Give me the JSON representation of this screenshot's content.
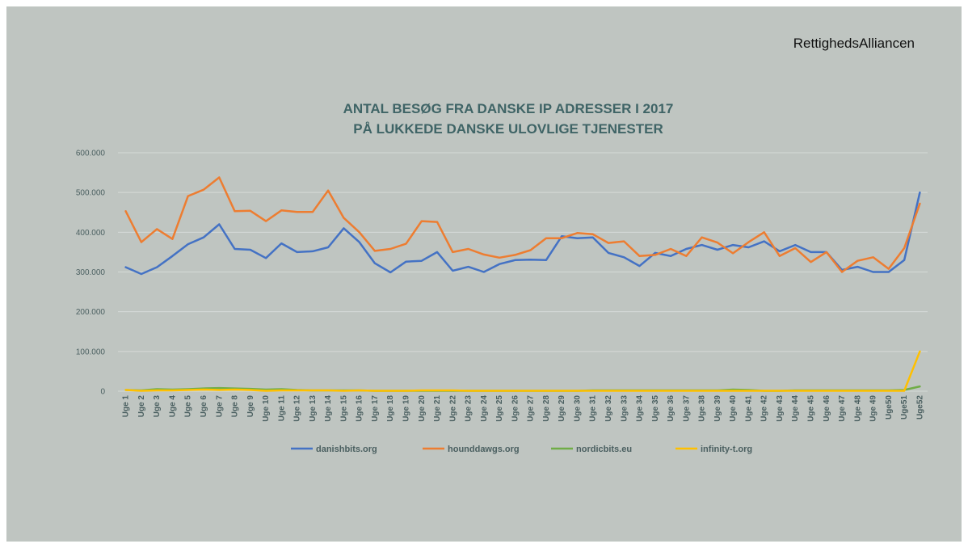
{
  "slide": {
    "org_name": "RettighedsAlliancen"
  },
  "colors": {
    "background": "#bfc5c1",
    "title": "#3f6466",
    "axis_text": "#4a5f60",
    "gridline": "#d6dbd8"
  },
  "chart_data": {
    "type": "line",
    "title_lines": [
      "ANTAL BESØG FRA DANSKE IP ADRESSER I 2017",
      "PÅ LUKKEDE DANSKE ULOVLIGE TJENESTER"
    ],
    "ylim": [
      0,
      600000
    ],
    "yticks": [
      0,
      100000,
      200000,
      300000,
      400000,
      500000,
      600000
    ],
    "ytick_labels": [
      "0",
      "100.000",
      "200.000",
      "300.000",
      "400.000",
      "500.000",
      "600.000"
    ],
    "grid": true,
    "legend_position": "bottom",
    "categories": [
      "Uge 1",
      "Uge 2",
      "Uge 3",
      "Uge 4",
      "Uge 5",
      "Uge 6",
      "Uge 7",
      "Uge 8",
      "Uge 9",
      "Uge 10",
      "Uge 11",
      "Uge 12",
      "Uge 13",
      "Uge 14",
      "Uge 15",
      "Uge 16",
      "Uge 17",
      "Uge 18",
      "Uge 19",
      "Uge 20",
      "Uge 21",
      "Uge 22",
      "Uge 23",
      "Uge 24",
      "Uge 25",
      "Uge 26",
      "Uge 27",
      "Uge 28",
      "Uge 29",
      "Uge 30",
      "Uge 31",
      "Uge 32",
      "Uge 33",
      "Uge 34",
      "Uge 35",
      "Uge 36",
      "Uge 37",
      "Uge 38",
      "Uge 39",
      "Uge 40",
      "Uge 41",
      "Uge 42",
      "Uge 43",
      "Uge 44",
      "Uge 45",
      "Uge 46",
      "Uge 47",
      "Uge 48",
      "Uge 49",
      "Uge50",
      "Uge51",
      "Uge52"
    ],
    "series": [
      {
        "name": "danishbits.org",
        "color": "#4472c4",
        "values": [
          312000,
          295000,
          312000,
          340000,
          370000,
          387000,
          420000,
          358000,
          356000,
          335000,
          372000,
          350000,
          352000,
          362000,
          410000,
          375000,
          322000,
          299000,
          326000,
          328000,
          350000,
          303000,
          313000,
          300000,
          320000,
          330000,
          331000,
          330000,
          390000,
          385000,
          387000,
          348000,
          337000,
          315000,
          348000,
          340000,
          358000,
          368000,
          356000,
          368000,
          362000,
          377000,
          352000,
          368000,
          350000,
          350000,
          305000,
          313000,
          300000,
          300000,
          330000,
          500000
        ]
      },
      {
        "name": "hounddawgs.org",
        "color": "#ed7d31",
        "values": [
          453000,
          375000,
          408000,
          383000,
          491000,
          507000,
          538000,
          453000,
          454000,
          428000,
          455000,
          451000,
          451000,
          505000,
          436000,
          400000,
          353000,
          358000,
          371000,
          428000,
          426000,
          350000,
          358000,
          344000,
          336000,
          343000,
          355000,
          385000,
          385000,
          398000,
          395000,
          373000,
          377000,
          340000,
          343000,
          358000,
          340000,
          387000,
          374000,
          347000,
          375000,
          400000,
          340000,
          360000,
          325000,
          350000,
          300000,
          328000,
          337000,
          308000,
          360000,
          472000
        ]
      },
      {
        "name": "nordicbits.eu",
        "color": "#70ad47",
        "values": [
          3000,
          2000,
          5000,
          4000,
          5000,
          7000,
          8000,
          7000,
          6000,
          4000,
          5000,
          3000,
          2000,
          2000,
          2000,
          2000,
          1000,
          1000,
          1000,
          1000,
          1000,
          1000,
          1000,
          1000,
          1000,
          1000,
          1000,
          1000,
          1000,
          1000,
          2000,
          2000,
          2000,
          2000,
          2000,
          2000,
          2000,
          2000,
          2000,
          4000,
          3000,
          1000,
          1000,
          2000,
          2000,
          2000,
          2000,
          2000,
          2000,
          2000,
          3000,
          12000
        ]
      },
      {
        "name": "infinity-t.org",
        "color": "#ffc000",
        "values": [
          3000,
          1000,
          2000,
          2000,
          3000,
          4000,
          3000,
          4000,
          3000,
          1000,
          2000,
          2000,
          2000,
          2000,
          1000,
          2000,
          1000,
          1000,
          1000,
          2000,
          2000,
          2000,
          1000,
          1000,
          1000,
          1000,
          1000,
          1000,
          1000,
          1000,
          1000,
          1000,
          1000,
          1000,
          1000,
          1000,
          1000,
          1000,
          1000,
          1000,
          1000,
          1000,
          1000,
          1000,
          1000,
          1000,
          1000,
          1000,
          1000,
          1000,
          1000,
          100000
        ]
      }
    ]
  }
}
